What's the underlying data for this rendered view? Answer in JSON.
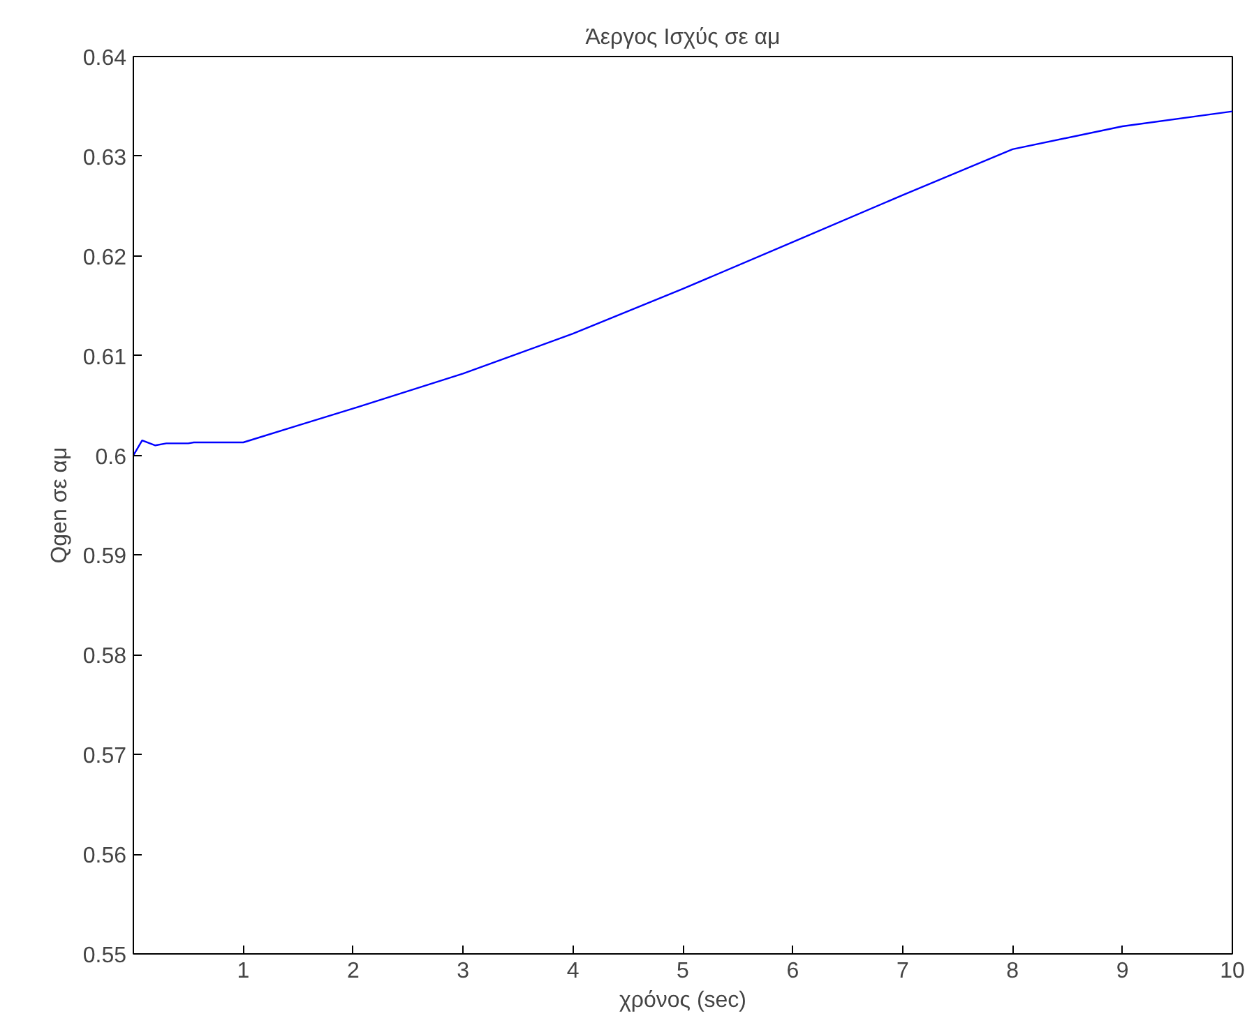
{
  "chart_data": {
    "type": "line",
    "title": "Άεργος Ισχύς σε αμ",
    "xlabel": "χρόνος (sec)",
    "ylabel": "Qgen σε αμ",
    "x": [
      0,
      0.08,
      0.2,
      0.3,
      0.5,
      0.55,
      1,
      1.5,
      2,
      3,
      4,
      5,
      6,
      7,
      8,
      9,
      10
    ],
    "series": [
      {
        "color": "#0000ff",
        "values": [
          0.6,
          0.6015,
          0.601,
          0.6012,
          0.6012,
          0.6013,
          0.6013,
          0.603,
          0.6047,
          0.6082,
          0.6122,
          0.6167,
          0.6214,
          0.6261,
          0.6307,
          0.633,
          0.6345
        ]
      }
    ],
    "xlim": [
      0,
      10
    ],
    "ylim": [
      0.55,
      0.64
    ],
    "xticks": [
      1,
      2,
      3,
      4,
      5,
      6,
      7,
      8,
      9,
      10
    ],
    "yticks": [
      0.55,
      0.56,
      0.57,
      0.58,
      0.59,
      0.6,
      0.61,
      0.62,
      0.63,
      0.64
    ],
    "grid": false
  }
}
